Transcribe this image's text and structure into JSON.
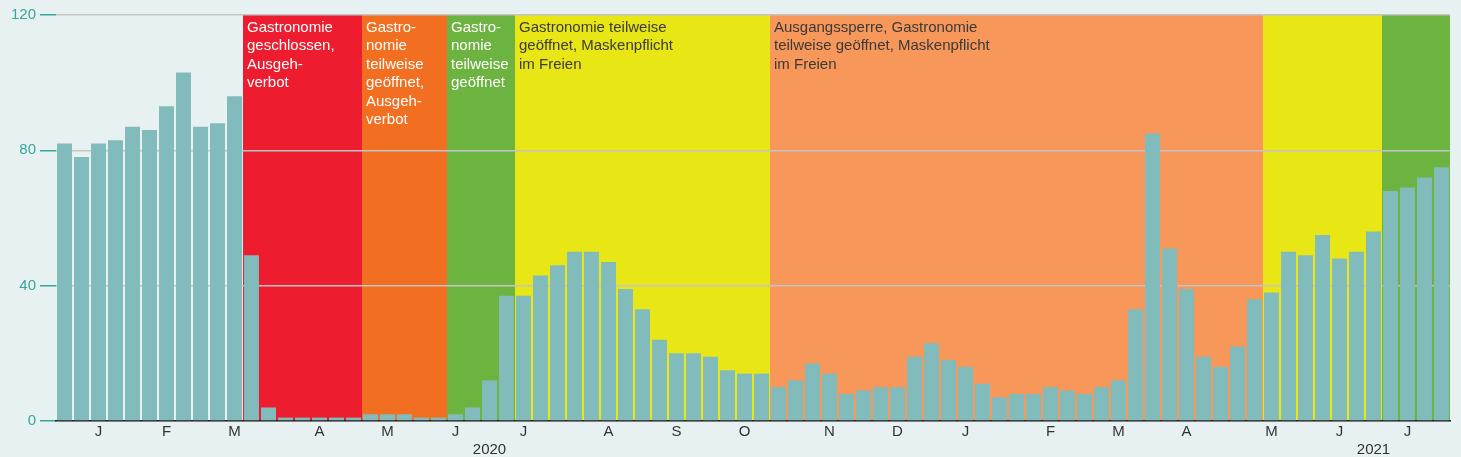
{
  "chart_data": {
    "type": "bar",
    "color": "#82bbbb",
    "categories": [
      null,
      null,
      "J",
      null,
      null,
      null,
      "F",
      null,
      null,
      null,
      "M",
      null,
      null,
      null,
      null,
      "A",
      null,
      null,
      null,
      "M",
      null,
      null,
      null,
      "J",
      null,
      "2020",
      null,
      "J",
      null,
      null,
      null,
      null,
      "A",
      null,
      null,
      null,
      "S",
      null,
      null,
      null,
      "O",
      null,
      null,
      null,
      null,
      "N",
      null,
      null,
      null,
      "D",
      null,
      null,
      null,
      "J",
      null,
      null,
      null,
      null,
      "F",
      null,
      null,
      null,
      "M",
      null,
      null,
      null,
      "A",
      null,
      null,
      null,
      null,
      "M",
      null,
      null,
      null,
      "J",
      null,
      "2021",
      null,
      "J",
      null,
      null
    ],
    "values": [
      82,
      78,
      82,
      83,
      87,
      86,
      93,
      103,
      87,
      88,
      96,
      49,
      4,
      1,
      1,
      1,
      1,
      1,
      2,
      2,
      2,
      1,
      1,
      2,
      4,
      12,
      37,
      37,
      43,
      46,
      50,
      50,
      47,
      39,
      33,
      24,
      20,
      20,
      19,
      15,
      14,
      14,
      10,
      12,
      17,
      14,
      8,
      9,
      10,
      10,
      19,
      23,
      18,
      16,
      11,
      7,
      8,
      8,
      10,
      9,
      8,
      10,
      12,
      33,
      85,
      51,
      39,
      19,
      16,
      22,
      36,
      38,
      50,
      49,
      55,
      48,
      50,
      56,
      68,
      69,
      72,
      75
    ],
    "ylim": [
      0,
      120
    ],
    "yticks": [
      0,
      40,
      80,
      120
    ],
    "grid": "y",
    "annotations": [
      "Gastronomie\ngeschlossen,\nAusgeh-\nverbot",
      "Gastro-\nnomie\nteilweise\ngeöffnet,\nAusgeh-\nverbot",
      "Gastro-\nnomie\nteilweise\ngeöffnet",
      "Gastronomie teilweise\ngeöffnet, Maskenpflicht\nim Freien",
      "Ausgangssperre, Gastronomie\nteilweise geöffnet, Maskenpflicht\nim Freien"
    ]
  }
}
